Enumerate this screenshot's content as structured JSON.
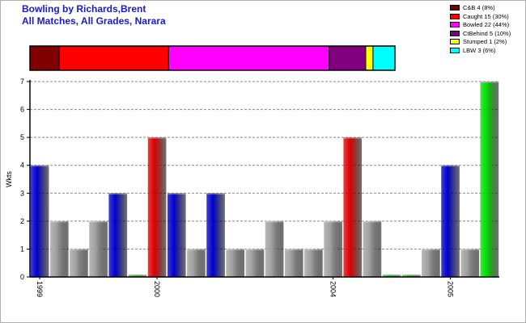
{
  "title_line1": "Bowling by Richards,Brent",
  "title_line2": "All Matches, All Grades, Narara",
  "dismissals": [
    {
      "label": "C&B 4 (8%)",
      "count": 4,
      "color": "#800000"
    },
    {
      "label": "Caught 15 (30%)",
      "count": 15,
      "color": "#ff0000"
    },
    {
      "label": "Bowled 22 (44%)",
      "count": 22,
      "color": "#ff00ff"
    },
    {
      "label": "CtBehind 5 (10%)",
      "count": 5,
      "color": "#800080"
    },
    {
      "label": "Stumped 1 (2%)",
      "count": 1,
      "color": "#ffff00"
    },
    {
      "label": "LBW 3 (6%)",
      "count": 3,
      "color": "#00ffff"
    }
  ],
  "chart_data": {
    "type": "bar",
    "title": "Bowling by Richards,Brent",
    "subtitle": "All Matches, All Grades, Narara",
    "xlabel": "",
    "ylabel": "Wkts",
    "ylim": [
      0,
      7
    ],
    "yticks": [
      0,
      1,
      2,
      3,
      4,
      5,
      6,
      7
    ],
    "grid": true,
    "xtick_labels": [
      {
        "index": 0,
        "label": "1999"
      },
      {
        "index": 6,
        "label": "2000"
      },
      {
        "index": 15,
        "label": "2004"
      },
      {
        "index": 21,
        "label": "2005"
      }
    ],
    "values": [
      4,
      2,
      1,
      2,
      3,
      0.08,
      5,
      3,
      1,
      3,
      1,
      1,
      2,
      1,
      1,
      2,
      5,
      2,
      0.08,
      0.08,
      1,
      4,
      1,
      7
    ],
    "bar_colors": [
      "blue",
      "gray",
      "gray",
      "gray",
      "blue",
      "green",
      "red",
      "blue",
      "gray",
      "blue",
      "gray",
      "gray",
      "gray",
      "gray",
      "gray",
      "gray",
      "red",
      "gray",
      "green",
      "green",
      "gray",
      "blue",
      "gray",
      "bright_green"
    ],
    "colors": {
      "blue": "#0000cc",
      "gray": "#a0a0a0",
      "red": "#dd0000",
      "green": "#00aa00",
      "bright_green": "#00dd00"
    }
  }
}
